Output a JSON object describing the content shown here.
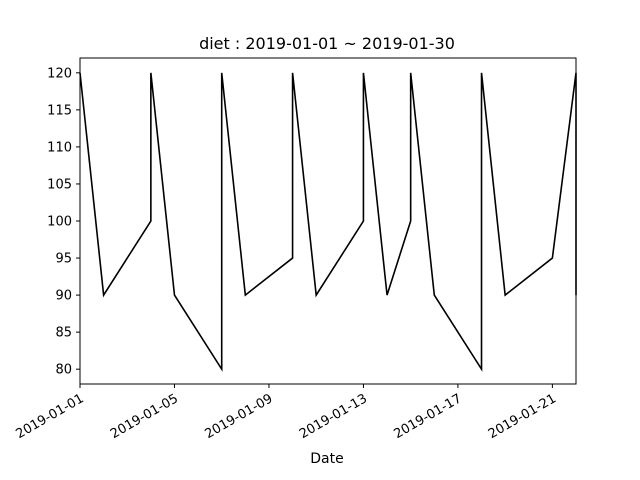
{
  "chart_data": {
    "type": "line",
    "title": "diet : 2019-01-01 ~ 2019-01-30",
    "xlabel": "Date",
    "ylabel": "",
    "xlim": [
      "2019-01-01",
      "2019-01-22"
    ],
    "ylim": [
      78.0,
      122.0
    ],
    "grid": false,
    "legend": "none",
    "x_tick_labels": [
      "2019-01-01",
      "2019-01-05",
      "2019-01-09",
      "2019-01-13",
      "2019-01-17",
      "2019-01-21"
    ],
    "y_tick_labels": [
      "80",
      "85",
      "90",
      "95",
      "100",
      "105",
      "110",
      "115",
      "120"
    ],
    "series": [
      {
        "color": "#000000",
        "points": [
          {
            "x": "2019-01-01",
            "y": 120
          },
          {
            "x": "2019-01-02",
            "y": 90
          },
          {
            "x": "2019-01-04",
            "y": 100
          },
          {
            "x": "2019-01-04",
            "y": 120
          },
          {
            "x": "2019-01-05",
            "y": 90
          },
          {
            "x": "2019-01-07",
            "y": 80
          },
          {
            "x": "2019-01-07",
            "y": 120
          },
          {
            "x": "2019-01-08",
            "y": 90
          },
          {
            "x": "2019-01-10",
            "y": 95
          },
          {
            "x": "2019-01-10",
            "y": 120
          },
          {
            "x": "2019-01-11",
            "y": 90
          },
          {
            "x": "2019-01-13",
            "y": 100
          },
          {
            "x": "2019-01-13",
            "y": 120
          },
          {
            "x": "2019-01-14",
            "y": 90
          },
          {
            "x": "2019-01-15",
            "y": 100
          },
          {
            "x": "2019-01-15",
            "y": 120
          },
          {
            "x": "2019-01-16",
            "y": 90
          },
          {
            "x": "2019-01-18",
            "y": 80
          },
          {
            "x": "2019-01-18",
            "y": 120
          },
          {
            "x": "2019-01-19",
            "y": 90
          },
          {
            "x": "2019-01-21",
            "y": 95
          },
          {
            "x": "2019-01-22",
            "y": 120
          },
          {
            "x": "2019-01-22",
            "y": 90
          }
        ]
      }
    ]
  }
}
